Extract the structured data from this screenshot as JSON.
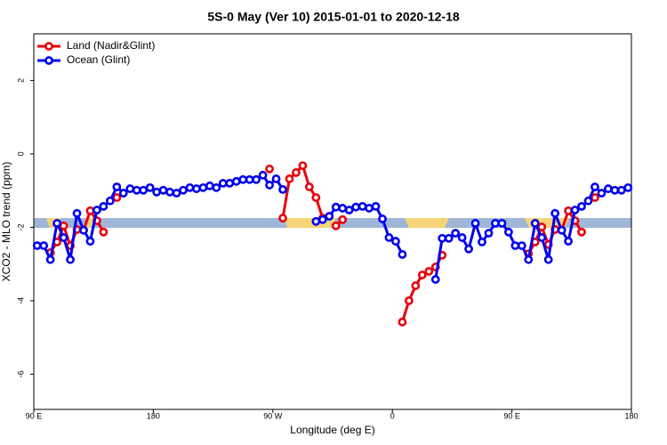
{
  "chart_data": {
    "type": "line",
    "title": "5S-0 May (Ver 10)   2015-01-01 to 2020-12-18",
    "x_label": "Longitude (deg E)",
    "y_label": "XCO2 - MLO trend (ppm)",
    "x": [
      92.5,
      97.5,
      102.5,
      107.5,
      112.5,
      117.5,
      122.5,
      127.5,
      132.5,
      137.5,
      142.5,
      147.5,
      152.5,
      157.5,
      162.5,
      167.5,
      172.5,
      177.5,
      182.5,
      187.5,
      192.5,
      197.5,
      202.5,
      207.5,
      212.5,
      217.5,
      222.5,
      227.5,
      232.5,
      237.5,
      242.5,
      247.5,
      252.5,
      257.5,
      262.5,
      267.5,
      272.5,
      277.5,
      282.5,
      287.5,
      292.5,
      297.5,
      302.5,
      307.5,
      312.5,
      317.5,
      322.5,
      327.5,
      332.5,
      337.5,
      342.5,
      347.5,
      352.5,
      357.5,
      362.5,
      367.5,
      372.5,
      377.5,
      382.5,
      387.5,
      392.5,
      397.5,
      402.5,
      407.5,
      412.5,
      417.5,
      422.5,
      427.5,
      432.5,
      437.5,
      442.5,
      447.5,
      452.5,
      457.5,
      462.5,
      467.5,
      472.5,
      477.5,
      482.5,
      487.5,
      492.5,
      497.5,
      502.5,
      507.5,
      512.5,
      517.5,
      522.5,
      527.5,
      532.5,
      537.5
    ],
    "series": [
      {
        "name": "Land (Nadir&Glint)",
        "color": "#e8000b",
        "values": [
          null,
          null,
          -2.69,
          -2.4,
          -1.96,
          -2.5,
          -2.06,
          -2.08,
          -1.55,
          -1.82,
          -2.13,
          null,
          -1.19,
          null,
          null,
          null,
          null,
          null,
          null,
          null,
          null,
          null,
          null,
          null,
          null,
          null,
          null,
          null,
          null,
          null,
          null,
          null,
          null,
          null,
          null,
          -0.41,
          null,
          -1.75,
          -0.68,
          -0.51,
          -0.32,
          -0.9,
          -1.19,
          -1.75,
          null,
          -1.96,
          -1.79,
          null,
          null,
          null,
          null,
          null,
          null,
          null,
          null,
          -4.58,
          -4.0,
          -3.59,
          -3.3,
          -3.2,
          -3.08,
          -2.76,
          null,
          null,
          null,
          null,
          null,
          null,
          null,
          null,
          null,
          null,
          null,
          null,
          -2.72,
          -2.4,
          -1.99,
          -2.47,
          -2.06,
          -2.08,
          -1.55,
          -1.82,
          -2.13,
          null,
          -1.19,
          null,
          null,
          null,
          null,
          null
        ]
      },
      {
        "name": "Ocean (Glint)",
        "color": "#0000ee",
        "values": [
          -2.5,
          -2.5,
          -2.88,
          -1.89,
          -2.28,
          -2.88,
          -1.62,
          -2.08,
          -2.38,
          -1.53,
          -1.43,
          -1.28,
          -0.9,
          -1.07,
          -0.95,
          -0.99,
          -0.99,
          -0.92,
          -1.04,
          -0.99,
          -1.04,
          -1.07,
          -0.99,
          -0.92,
          -0.95,
          -0.92,
          -0.87,
          -0.92,
          -0.8,
          -0.8,
          -0.75,
          -0.7,
          -0.7,
          -0.7,
          -0.58,
          -0.85,
          -0.68,
          -0.97,
          null,
          null,
          null,
          null,
          -1.84,
          -1.79,
          -1.7,
          -1.45,
          -1.48,
          -1.53,
          -1.45,
          -1.43,
          -1.48,
          -1.43,
          -1.77,
          -2.28,
          -2.38,
          -2.74,
          null,
          null,
          null,
          null,
          -3.42,
          -2.3,
          -2.3,
          -2.16,
          -2.28,
          -2.59,
          -1.89,
          -2.4,
          -2.16,
          -1.89,
          -1.89,
          -2.13,
          -2.5,
          -2.5,
          -2.88,
          -1.89,
          -2.28,
          -2.88,
          -1.62,
          -2.08,
          -2.38,
          -1.53,
          -1.43,
          -1.28,
          -0.9,
          -1.07,
          -0.95,
          -0.99,
          -0.99,
          -0.92
        ]
      }
    ],
    "xlim": [
      90,
      540
    ],
    "xticks": [
      {
        "value": 90,
        "label": "90 E"
      },
      {
        "value": 180,
        "label": "180"
      },
      {
        "value": 270,
        "label": "90 W"
      },
      {
        "value": 360,
        "label": "0"
      },
      {
        "value": 450,
        "label": "90 E"
      },
      {
        "value": 540,
        "label": "180"
      }
    ],
    "ylim": [
      -6.96,
      3.27
    ],
    "yticks": [
      -6,
      -4,
      -2,
      0,
      2
    ],
    "legend": "top-left"
  }
}
